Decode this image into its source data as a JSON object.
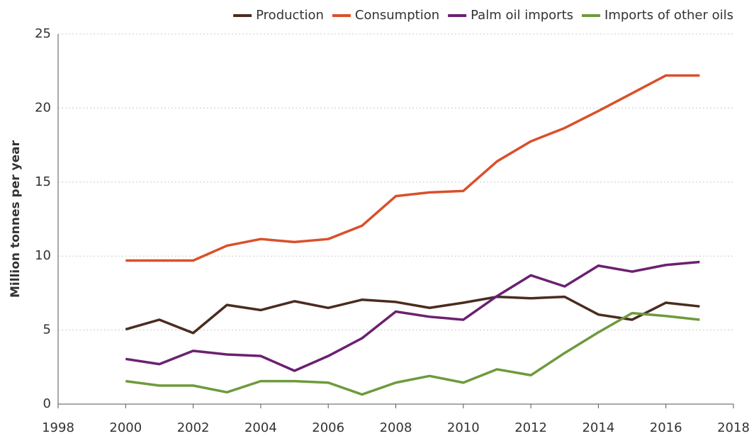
{
  "chart_data": {
    "type": "line",
    "ylabel": "Million tonnes per year",
    "x": [
      2000,
      2001,
      2002,
      2003,
      2004,
      2005,
      2006,
      2007,
      2008,
      2009,
      2010,
      2011,
      2012,
      2013,
      2014,
      2015,
      2016,
      2017
    ],
    "series": [
      {
        "name": "Production",
        "color": "#4a2c1f",
        "values": [
          5.05,
          5.7,
          4.8,
          6.7,
          6.35,
          6.95,
          6.5,
          7.05,
          6.9,
          6.5,
          6.85,
          7.25,
          7.15,
          7.25,
          6.05,
          5.7,
          6.85,
          6.6
        ]
      },
      {
        "name": "Consumption",
        "color": "#d9502a",
        "values": [
          9.7,
          9.7,
          9.7,
          10.7,
          11.15,
          10.95,
          11.15,
          12.05,
          14.05,
          14.3,
          14.4,
          16.4,
          17.75,
          18.65,
          19.8,
          21.0,
          22.2,
          22.2
        ]
      },
      {
        "name": "Palm oil imports",
        "color": "#6b2070",
        "values": [
          3.05,
          2.7,
          3.6,
          3.35,
          3.25,
          2.25,
          3.25,
          4.45,
          6.25,
          5.9,
          5.7,
          7.3,
          8.7,
          7.95,
          9.35,
          8.95,
          9.4,
          9.6
        ]
      },
      {
        "name": "Imports of other oils",
        "color": "#6e9a3c",
        "values": [
          1.55,
          1.25,
          1.25,
          0.8,
          1.55,
          1.55,
          1.45,
          0.65,
          1.45,
          1.9,
          1.45,
          2.35,
          1.95,
          3.45,
          4.85,
          6.15,
          5.95,
          5.7
        ]
      }
    ],
    "xlim": [
      1998,
      2018
    ],
    "xticks": [
      1998,
      2000,
      2002,
      2004,
      2006,
      2008,
      2010,
      2012,
      2014,
      2016,
      2018
    ],
    "ylim": [
      0,
      25
    ],
    "yticks": [
      0,
      5,
      10,
      15,
      20,
      25
    ],
    "grid": true,
    "legend": "top-right"
  }
}
